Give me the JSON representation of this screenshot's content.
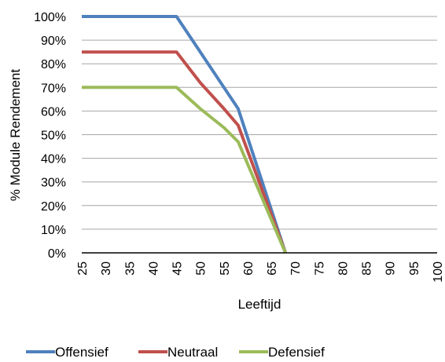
{
  "chart_data": {
    "type": "line",
    "title": "",
    "xlabel": "Leeftijd",
    "ylabel": "% Module Rendement",
    "x_ticks": [
      "25",
      "30",
      "35",
      "40",
      "45",
      "50",
      "55",
      "60",
      "65",
      "70",
      "75",
      "80",
      "85",
      "90",
      "95",
      "100"
    ],
    "y_ticks": [
      "0%",
      "10%",
      "20%",
      "30%",
      "40%",
      "50%",
      "60%",
      "70%",
      "80%",
      "90%",
      "100%"
    ],
    "xlim": [
      25,
      100
    ],
    "ylim": [
      0,
      100
    ],
    "grid": "horizontal",
    "legend_position": "bottom",
    "series": [
      {
        "name": "Offensief",
        "color": "#4F81BD",
        "x": [
          25,
          45,
          50,
          55,
          58,
          68
        ],
        "y": [
          100,
          100,
          85,
          70,
          61,
          0
        ]
      },
      {
        "name": "Neutraal",
        "color": "#C0504D",
        "x": [
          25,
          45,
          50,
          55,
          58,
          68
        ],
        "y": [
          85,
          85,
          72,
          61,
          54,
          0
        ]
      },
      {
        "name": "Defensief",
        "color": "#9BBB59",
        "x": [
          25,
          45,
          50,
          55,
          58,
          68
        ],
        "y": [
          70,
          70,
          61,
          53,
          47,
          0
        ]
      }
    ]
  }
}
